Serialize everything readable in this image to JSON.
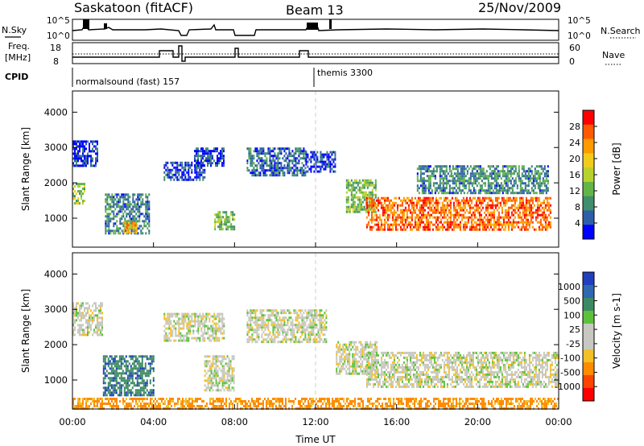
{
  "header": {
    "station": "Saskatoon (fitACF)",
    "beam": "Beam 13",
    "date": "25/Nov/2009"
  },
  "panels_top": {
    "nsky_label": "N.Sky",
    "nsearch_label": "N.Search",
    "nsky_ticks": [
      "10^5",
      "10^0"
    ],
    "nsearch_ticks": [
      "10^5",
      "10^0"
    ],
    "freq_label": "Freq.",
    "freq_unit": "[MHz]",
    "freq_ticks": [
      "18",
      "8"
    ],
    "nave_label": "Nave",
    "nave_ticks": [
      "60",
      "0"
    ],
    "cpid_label": "CPID",
    "cpid_modes": [
      {
        "label": "normalsound (fast) 157",
        "start_hour": 0
      },
      {
        "label": "themis 3300",
        "start_hour": 12.0
      }
    ]
  },
  "time_axis": {
    "label": "Time UT",
    "ticks": [
      "00:00",
      "04:00",
      "08:00",
      "12:00",
      "16:00",
      "20:00",
      "00:00"
    ]
  },
  "chart_data": [
    {
      "type": "heatmap",
      "name": "power",
      "ylabel": "Slant Range [km]",
      "yticks": [
        1000,
        2000,
        3000,
        4000
      ],
      "ylim": [
        180,
        4600
      ],
      "xlim": [
        0,
        24
      ],
      "colorbar_label": "Power [dB]",
      "colorbar_ticks": [
        "28",
        "24",
        "20",
        "16",
        "12",
        "8",
        "4"
      ],
      "colorbar_colors": [
        "#ff0000",
        "#ff5a00",
        "#ff9a00",
        "#f2cc1c",
        "#b9d12e",
        "#63b548",
        "#3f8f6a",
        "#2d5fa8",
        "#0000ff"
      ],
      "regions": [
        {
          "t0": 0.0,
          "t1": 0.6,
          "r0": 1400,
          "r1": 2000,
          "level": 16
        },
        {
          "t0": 0.0,
          "t1": 1.2,
          "r0": 2500,
          "r1": 3200,
          "level": 6
        },
        {
          "t0": 1.6,
          "t1": 3.8,
          "r0": 600,
          "r1": 1700,
          "level": 10
        },
        {
          "t0": 2.5,
          "t1": 3.2,
          "r0": 600,
          "r1": 900,
          "level": 22
        },
        {
          "t0": 4.5,
          "t1": 6.5,
          "r0": 2100,
          "r1": 2600,
          "level": 6
        },
        {
          "t0": 6.0,
          "t1": 7.5,
          "r0": 2500,
          "r1": 3000,
          "level": 6
        },
        {
          "t0": 7.0,
          "t1": 8.0,
          "r0": 700,
          "r1": 1200,
          "level": 14
        },
        {
          "t0": 8.6,
          "t1": 11.5,
          "r0": 2200,
          "r1": 3000,
          "level": 8
        },
        {
          "t0": 11.5,
          "t1": 13.0,
          "r0": 2300,
          "r1": 2900,
          "level": 6
        },
        {
          "t0": 13.5,
          "t1": 15.0,
          "r0": 1200,
          "r1": 2100,
          "level": 14
        },
        {
          "t0": 14.5,
          "t1": 23.6,
          "r0": 700,
          "r1": 1600,
          "level": 26
        },
        {
          "t0": 17.0,
          "t1": 23.5,
          "r0": 1700,
          "r1": 2500,
          "level": 10
        }
      ]
    },
    {
      "type": "heatmap",
      "name": "velocity",
      "ylabel": "Slant Range [km]",
      "yticks": [
        1000,
        2000,
        3000,
        4000
      ],
      "ylim": [
        180,
        4600
      ],
      "xlim": [
        0,
        24
      ],
      "colorbar_label": "Velocity [m s-1]",
      "colorbar_ticks": [
        "1000",
        "500",
        "100",
        "25",
        "-25",
        "-100",
        "-500",
        "-1000"
      ],
      "colorbar_colors": [
        "#1f3fbf",
        "#2f67b0",
        "#3c8a63",
        "#5cc23a",
        "#c8c8c0",
        "#c8c8c0",
        "#f2c028",
        "#ff8c00",
        "#ff4400",
        "#ff0000"
      ],
      "regions": [
        {
          "t0": 0.0,
          "t1": 1.5,
          "r0": 2300,
          "r1": 3200,
          "level": 0
        },
        {
          "t0": 1.5,
          "t1": 4.0,
          "r0": 600,
          "r1": 1700,
          "level": 50
        },
        {
          "t0": 4.5,
          "t1": 7.5,
          "r0": 2100,
          "r1": 2900,
          "level": 0
        },
        {
          "t0": 6.5,
          "t1": 8.0,
          "r0": 700,
          "r1": 1700,
          "level": 0
        },
        {
          "t0": 8.6,
          "t1": 12.5,
          "r0": 2100,
          "r1": 3000,
          "level": 0
        },
        {
          "t0": 13.0,
          "t1": 15.0,
          "r0": 1200,
          "r1": 2100,
          "level": 0
        },
        {
          "t0": 14.5,
          "t1": 24.0,
          "r0": 800,
          "r1": 1800,
          "level": 0
        },
        {
          "t0": 0.0,
          "t1": 24.0,
          "r0": 180,
          "r1": 500,
          "level": -50
        }
      ]
    }
  ]
}
